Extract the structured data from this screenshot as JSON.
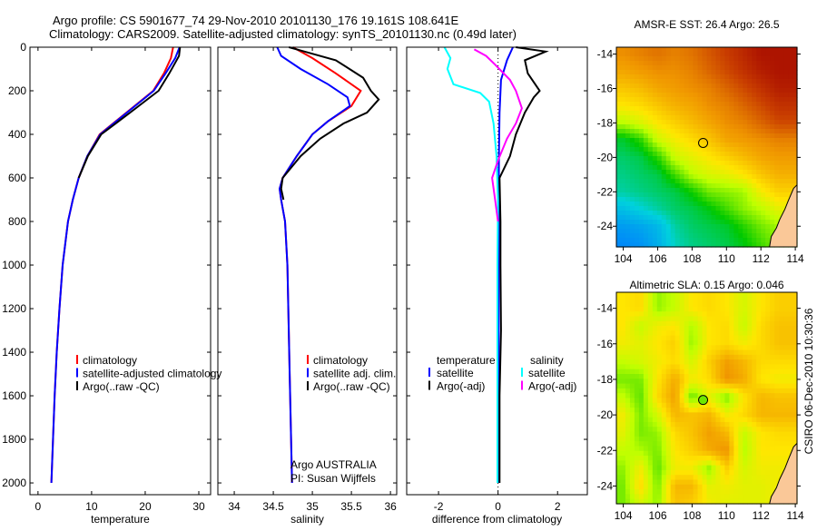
{
  "title_line1": "Argo profile: CS 5901677_74 29-Nov-2010 20101130_176 19.161S 108.641E",
  "title_line2": "Climatology: CARS2009. Satellite-adjusted climatology: synTS_20101130.nc (0.49d later)",
  "footer_stamp": "CSIRO 06-Dec-2010 10:30:36",
  "colors": {
    "climatology": "#ff0000",
    "satellite": "#0000ff",
    "argo": "#000000",
    "sal_satellite": "#00ffff",
    "sal_argo": "#ff00ff",
    "land": "#fac898"
  },
  "chart_data": [
    {
      "type": "line",
      "id": "temperature",
      "xlabel": "temperature",
      "ylabel": "",
      "xlim": [
        -1.5,
        32.2
      ],
      "ylim": [
        2054,
        0
      ],
      "xticks": [
        0,
        10,
        20,
        30
      ],
      "yticks": [
        0,
        200,
        400,
        600,
        800,
        1000,
        1200,
        1400,
        1600,
        1800,
        2000
      ],
      "legend": [
        "climatology",
        "satellite-adjusted climatology",
        "Argo(..raw -QC)"
      ],
      "series": [
        {
          "name": "climatology",
          "color": "#ff0000",
          "points": [
            [
              25.2,
              0
            ],
            [
              24.8,
              50
            ],
            [
              23.5,
              120
            ],
            [
              21.5,
              200
            ],
            [
              16.5,
              300
            ],
            [
              11.5,
              400
            ],
            [
              9.2,
              500
            ],
            [
              7.6,
              600
            ],
            [
              6.5,
              700
            ],
            [
              5.6,
              800
            ],
            [
              4.6,
              1000
            ],
            [
              4.0,
              1200
            ],
            [
              3.5,
              1400
            ],
            [
              3.1,
              1600
            ],
            [
              2.8,
              1800
            ],
            [
              2.5,
              2000
            ]
          ]
        },
        {
          "name": "satellite-adjusted climatology",
          "color": "#0000ff",
          "points": [
            [
              26.4,
              0
            ],
            [
              25.6,
              50
            ],
            [
              23.8,
              120
            ],
            [
              21.6,
              200
            ],
            [
              16.6,
              300
            ],
            [
              11.6,
              400
            ],
            [
              9.2,
              500
            ],
            [
              7.6,
              600
            ],
            [
              6.5,
              700
            ],
            [
              5.6,
              800
            ],
            [
              4.6,
              1000
            ],
            [
              4.0,
              1200
            ],
            [
              3.5,
              1400
            ],
            [
              3.1,
              1600
            ],
            [
              2.8,
              1800
            ],
            [
              2.5,
              2000
            ]
          ]
        },
        {
          "name": "Argo(..raw -QC)",
          "color": "#000000",
          "points": [
            [
              26.5,
              0
            ],
            [
              26.3,
              40
            ],
            [
              24.5,
              120
            ],
            [
              22.5,
              200
            ],
            [
              17.2,
              300
            ],
            [
              11.8,
              400
            ],
            [
              9.3,
              500
            ],
            [
              7.6,
              600
            ]
          ]
        }
      ]
    },
    {
      "type": "line",
      "id": "salinity",
      "xlabel": "salinity",
      "xlim": [
        33.79,
        36.08
      ],
      "ylim": [
        2054,
        0
      ],
      "xticks": [
        34,
        34.5,
        35,
        35.5,
        36
      ],
      "legend": [
        "climatology",
        "satellite adj. clim.",
        "Argo(..raw -QC)"
      ],
      "annotation": [
        "Argo AUSTRALIA",
        "PI: Susan Wijffels"
      ],
      "series": [
        {
          "name": "climatology",
          "color": "#ff0000",
          "points": [
            [
              34.75,
              0
            ],
            [
              35.0,
              50
            ],
            [
              35.3,
              120
            ],
            [
              35.62,
              200
            ],
            [
              35.5,
              270
            ],
            [
              35.2,
              340
            ],
            [
              35.0,
              400
            ],
            [
              34.8,
              500
            ],
            [
              34.62,
              600
            ],
            [
              34.58,
              650
            ],
            [
              34.6,
              700
            ],
            [
              34.65,
              800
            ],
            [
              34.68,
              1000
            ],
            [
              34.71,
              1500
            ],
            [
              34.74,
              2000
            ]
          ]
        },
        {
          "name": "satellite adj. clim.",
          "color": "#0000ff",
          "points": [
            [
              34.55,
              0
            ],
            [
              34.6,
              40
            ],
            [
              34.85,
              100
            ],
            [
              35.2,
              170
            ],
            [
              35.45,
              230
            ],
            [
              35.48,
              270
            ],
            [
              35.2,
              340
            ],
            [
              35.0,
              400
            ],
            [
              34.8,
              500
            ],
            [
              34.62,
              600
            ],
            [
              34.58,
              650
            ],
            [
              34.6,
              700
            ],
            [
              34.65,
              800
            ],
            [
              34.68,
              1000
            ],
            [
              34.71,
              1500
            ],
            [
              34.74,
              2000
            ]
          ]
        },
        {
          "name": "Argo(..raw -QC)",
          "color": "#000000",
          "points": [
            [
              34.7,
              0
            ],
            [
              34.9,
              20
            ],
            [
              35.3,
              60
            ],
            [
              35.65,
              140
            ],
            [
              35.75,
              200
            ],
            [
              35.85,
              240
            ],
            [
              35.7,
              300
            ],
            [
              35.4,
              350
            ],
            [
              35.1,
              420
            ],
            [
              34.85,
              500
            ],
            [
              34.62,
              600
            ],
            [
              34.6,
              650
            ],
            [
              34.63,
              700
            ]
          ]
        }
      ]
    },
    {
      "type": "line",
      "id": "difference",
      "xlabel": "difference from climatology",
      "xlim": [
        -3.07,
        3.0
      ],
      "ylim": [
        2054,
        0
      ],
      "xticks": [
        -2,
        0,
        2
      ],
      "legend_titles": [
        "temperature",
        "salinity"
      ],
      "legend": [
        "satellite",
        "Argo(-adj)",
        "satellite",
        "Argo(-adj)"
      ],
      "series": [
        {
          "name": "temperature satellite",
          "color": "#0000ff",
          "points": [
            [
              0.5,
              0
            ],
            [
              0.3,
              60
            ],
            [
              0.1,
              150
            ],
            [
              0.05,
              300
            ],
            [
              0.03,
              500
            ],
            [
              0.02,
              1000
            ],
            [
              0.02,
              2000
            ]
          ]
        },
        {
          "name": "temperature Argo(-adj)",
          "color": "#000000",
          "points": [
            [
              0.6,
              0
            ],
            [
              1.6,
              20
            ],
            [
              0.9,
              60
            ],
            [
              1.0,
              120
            ],
            [
              1.4,
              200
            ],
            [
              1.2,
              230
            ],
            [
              0.9,
              300
            ],
            [
              0.6,
              400
            ],
            [
              0.4,
              500
            ],
            [
              0.05,
              600
            ],
            [
              0.08,
              800
            ],
            [
              0.08,
              1000
            ],
            [
              0.1,
              1300
            ],
            [
              0.05,
              1600
            ],
            [
              0.05,
              2000
            ]
          ]
        },
        {
          "name": "salinity satellite",
          "color": "#00ffff",
          "points": [
            [
              -1.8,
              0
            ],
            [
              -1.6,
              50
            ],
            [
              -1.7,
              100
            ],
            [
              -1.5,
              170
            ],
            [
              -0.6,
              210
            ],
            [
              -0.3,
              250
            ],
            [
              -0.15,
              350
            ],
            [
              -0.05,
              500
            ],
            [
              0,
              700
            ],
            [
              -0.02,
              1000
            ],
            [
              -0.02,
              2000
            ]
          ]
        },
        {
          "name": "salinity Argo(-adj)",
          "color": "#ff00ff",
          "points": [
            [
              -0.8,
              10
            ],
            [
              -0.4,
              40
            ],
            [
              -0.1,
              80
            ],
            [
              0.4,
              150
            ],
            [
              0.6,
              200
            ],
            [
              0.8,
              280
            ],
            [
              0.6,
              350
            ],
            [
              0.3,
              420
            ],
            [
              0.0,
              520
            ],
            [
              -0.2,
              600
            ],
            [
              -0.1,
              700
            ],
            [
              0.0,
              800
            ]
          ]
        }
      ]
    },
    {
      "type": "heatmap",
      "id": "sst_map",
      "title": "AMSR-E SST: 26.4 Argo: 26.5",
      "xlim": [
        103.6,
        114.1
      ],
      "ylim": [
        -25.2,
        -13.6
      ],
      "xticks": [
        104,
        106,
        108,
        110,
        112,
        114
      ],
      "yticks": [
        -14,
        -16,
        -18,
        -20,
        -22,
        -24
      ],
      "lons": [
        104,
        105,
        106,
        107,
        108,
        109,
        110,
        111,
        112,
        113
      ],
      "lats": [
        -14,
        -15,
        -16,
        -17,
        -18,
        -19,
        -20,
        -21,
        -22,
        -23,
        -24,
        -25
      ],
      "crange": [
        23,
        28
      ],
      "argo_position": [
        108.641,
        -19.161
      ],
      "argo_value": 26.5,
      "values": [
        [
          26.8,
          26.9,
          27.0,
          26.9,
          27.0,
          27.2,
          27.4,
          27.6,
          27.8,
          27.8
        ],
        [
          26.6,
          26.7,
          26.8,
          26.8,
          26.9,
          27.1,
          27.3,
          27.5,
          27.7,
          27.8
        ],
        [
          26.3,
          26.4,
          26.6,
          26.7,
          26.8,
          26.9,
          27.1,
          27.3,
          27.5,
          27.7
        ],
        [
          26.0,
          26.1,
          26.3,
          26.5,
          26.6,
          26.8,
          26.9,
          27.1,
          27.3,
          27.5
        ],
        [
          25.5,
          25.7,
          26.0,
          26.2,
          26.4,
          26.6,
          26.8,
          26.9,
          27.1,
          27.3
        ],
        [
          24.6,
          24.9,
          25.6,
          25.9,
          26.1,
          26.3,
          26.6,
          26.7,
          26.8,
          26.9
        ],
        [
          24.4,
          24.5,
          24.9,
          25.6,
          25.8,
          26.0,
          26.2,
          26.4,
          26.6,
          26.7
        ],
        [
          24.3,
          24.4,
          24.5,
          25.0,
          25.5,
          25.7,
          25.8,
          26.0,
          26.3,
          26.5
        ],
        [
          24.2,
          24.3,
          24.4,
          24.5,
          24.8,
          25.2,
          25.3,
          25.4,
          25.9,
          26.2
        ],
        [
          23.8,
          24.0,
          24.2,
          24.4,
          24.5,
          24.7,
          25.0,
          25.3,
          25.5,
          25.8
        ],
        [
          23.4,
          23.5,
          23.7,
          24.2,
          24.4,
          24.5,
          24.6,
          24.9,
          25.2,
          25.4
        ],
        [
          23.2,
          23.3,
          23.6,
          24.1,
          24.3,
          24.4,
          24.5,
          24.7,
          25.0,
          25.3
        ]
      ]
    },
    {
      "type": "heatmap",
      "id": "sla_map",
      "title": "Altimetric SLA: 0.15 Argo: 0.046",
      "xlim": [
        103.6,
        114.1
      ],
      "ylim": [
        -25.0,
        -13.1
      ],
      "xticks": [
        104,
        106,
        108,
        110,
        112,
        114
      ],
      "yticks": [
        -14,
        -16,
        -18,
        -20,
        -22,
        -24
      ],
      "lons": [
        104,
        105,
        106,
        107,
        108,
        109,
        110,
        111,
        112,
        113
      ],
      "lats": [
        -14,
        -15,
        -16,
        -17,
        -18,
        -19,
        -20,
        -21,
        -22,
        -23,
        -24,
        -25
      ],
      "crange": [
        -0.15,
        0.3
      ],
      "argo_position": [
        108.641,
        -19.161
      ],
      "argo_value": 0.046,
      "values": [
        [
          0.12,
          0.13,
          0.06,
          0.08,
          0.12,
          0.13,
          0.12,
          0.09,
          0.12,
          0.14
        ],
        [
          0.12,
          0.08,
          0.11,
          0.12,
          0.07,
          0.12,
          0.13,
          0.08,
          0.13,
          0.15
        ],
        [
          0.11,
          0.1,
          0.12,
          0.14,
          0.06,
          0.12,
          0.13,
          0.11,
          0.13,
          0.15
        ],
        [
          0.08,
          0.09,
          0.11,
          0.13,
          0.09,
          0.14,
          0.18,
          0.16,
          0.13,
          0.13
        ],
        [
          0.05,
          0.05,
          0.12,
          0.17,
          0.11,
          0.13,
          0.19,
          0.17,
          0.12,
          0.11
        ],
        [
          0.08,
          0.04,
          0.13,
          0.18,
          0.04,
          0.1,
          0.05,
          0.12,
          0.16,
          0.15
        ],
        [
          0.11,
          0.05,
          0.09,
          0.16,
          0.15,
          0.16,
          0.11,
          0.13,
          0.16,
          0.16
        ],
        [
          0.1,
          0.05,
          0.06,
          0.13,
          0.15,
          0.18,
          0.16,
          0.08,
          0.12,
          0.13
        ],
        [
          0.08,
          0.07,
          0.05,
          0.12,
          0.14,
          0.17,
          0.19,
          0.07,
          0.12,
          0.12
        ],
        [
          0.06,
          0.11,
          0.04,
          0.11,
          0.11,
          0.06,
          0.14,
          0.09,
          0.11,
          0.11
        ],
        [
          0.05,
          0.13,
          0.05,
          0.16,
          0.16,
          0.1,
          0.11,
          0.1,
          0.1,
          0.11
        ],
        [
          0.05,
          0.09,
          0.06,
          0.15,
          0.14,
          0.11,
          0.1,
          0.1,
          0.1,
          0.11
        ]
      ]
    }
  ]
}
